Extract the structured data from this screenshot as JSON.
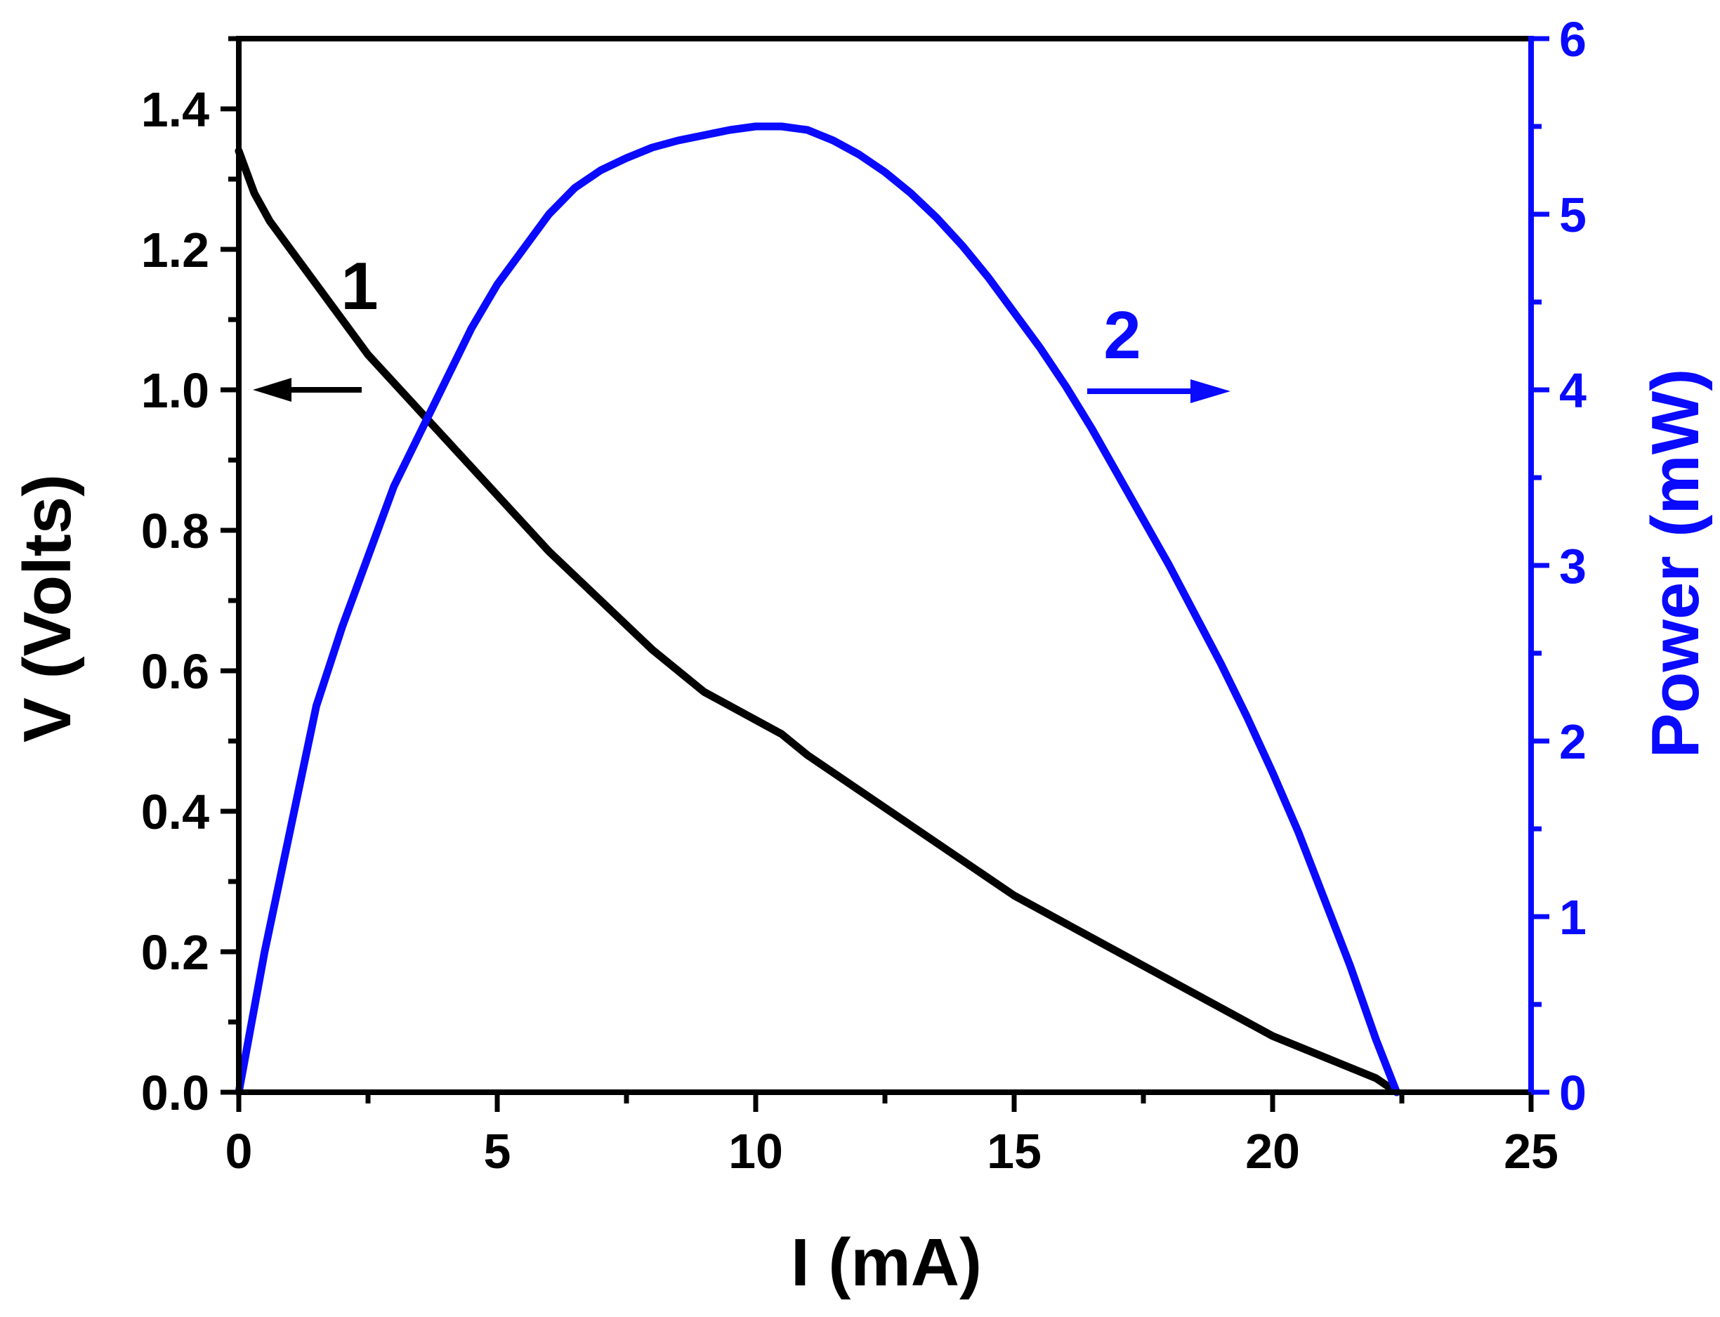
{
  "chart_data": {
    "type": "line",
    "xlabel": "I (mA)",
    "ylabel_left": "V (Volts)",
    "ylabel_right": "Power (mW)",
    "xlim": [
      0,
      25
    ],
    "ylim_left": [
      0,
      1.5
    ],
    "ylim_right": [
      0,
      6
    ],
    "x_ticks": [
      "0",
      "5",
      "10",
      "15",
      "20",
      "25"
    ],
    "y_left_ticks": [
      "0.0",
      "0.2",
      "0.4",
      "0.6",
      "0.8",
      "1.0",
      "1.2",
      "1.4"
    ],
    "y_right_ticks": [
      "0",
      "1",
      "2",
      "3",
      "4",
      "5",
      "6"
    ],
    "grid": false,
    "colors": {
      "voltage": "#000000",
      "power": "#0a0aff"
    },
    "series": [
      {
        "name": "1",
        "axis": "left",
        "x": [
          0,
          0.3,
          0.6,
          1.0,
          1.5,
          2.0,
          2.5,
          3.0,
          3.5,
          4.0,
          4.5,
          5.0,
          5.5,
          6.0,
          7.0,
          8.0,
          9.0,
          10.0,
          10.5,
          11.0,
          12.0,
          13.0,
          14.0,
          15.0,
          16.0,
          17.0,
          18.0,
          19.0,
          20.0,
          21.0,
          22.0,
          22.4
        ],
        "values": [
          1.34,
          1.28,
          1.24,
          1.2,
          1.15,
          1.1,
          1.05,
          1.01,
          0.97,
          0.93,
          0.89,
          0.85,
          0.81,
          0.77,
          0.7,
          0.63,
          0.57,
          0.53,
          0.51,
          0.48,
          0.43,
          0.38,
          0.33,
          0.28,
          0.24,
          0.2,
          0.16,
          0.12,
          0.08,
          0.05,
          0.02,
          0.0
        ]
      },
      {
        "name": "2",
        "axis": "right",
        "x": [
          0,
          0.5,
          1.0,
          1.5,
          2.0,
          2.5,
          3.0,
          3.5,
          4.0,
          4.5,
          5.0,
          5.5,
          6.0,
          6.5,
          7.0,
          7.5,
          8.0,
          8.5,
          9.0,
          9.5,
          10.0,
          10.5,
          11.0,
          11.5,
          12.0,
          12.5,
          13.0,
          13.5,
          14.0,
          14.5,
          15.0,
          15.5,
          16.0,
          16.5,
          17.0,
          17.5,
          18.0,
          18.5,
          19.0,
          19.5,
          20.0,
          20.5,
          21.0,
          21.5,
          22.0,
          22.4
        ],
        "values": [
          0.0,
          0.8,
          1.5,
          2.2,
          2.65,
          3.05,
          3.45,
          3.75,
          4.05,
          4.35,
          4.6,
          4.8,
          5.0,
          5.15,
          5.25,
          5.32,
          5.38,
          5.42,
          5.45,
          5.48,
          5.5,
          5.5,
          5.48,
          5.42,
          5.34,
          5.24,
          5.12,
          4.98,
          4.82,
          4.64,
          4.44,
          4.24,
          4.02,
          3.78,
          3.52,
          3.26,
          3.0,
          2.72,
          2.44,
          2.14,
          1.82,
          1.48,
          1.1,
          0.72,
          0.3,
          0.0
        ]
      }
    ],
    "annotations": [
      {
        "text": "1",
        "arrow": "left"
      },
      {
        "text": "2",
        "arrow": "right"
      }
    ]
  }
}
